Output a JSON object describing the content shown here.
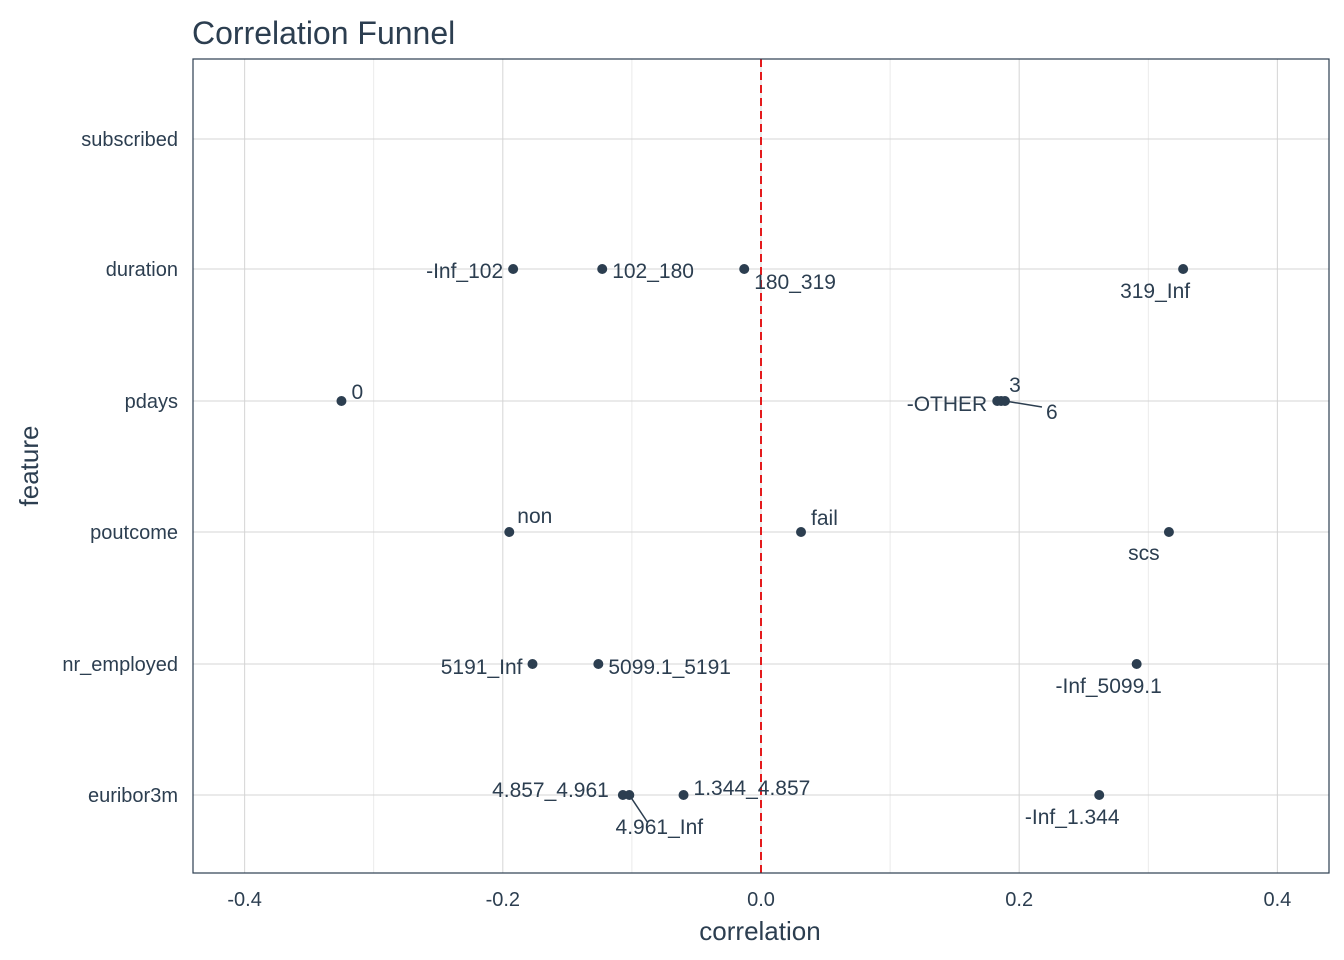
{
  "chart_data": {
    "type": "scatter",
    "title": "Correlation Funnel",
    "xlabel": "correlation",
    "ylabel": "feature",
    "xlim": [
      -0.44,
      0.44
    ],
    "x_ticks": [
      "-0.4",
      "-0.2",
      "0.0",
      "0.2",
      "0.4"
    ],
    "x_tick_values": [
      -0.4,
      -0.2,
      0.0,
      0.2,
      0.4
    ],
    "features": [
      "subscribed",
      "duration",
      "pdays",
      "poutcome",
      "nr_employed",
      "euribor3m"
    ],
    "reference_line": {
      "x": 0,
      "style": "dashed",
      "color": "#e41a1c"
    },
    "grid": true,
    "point_color": "#2c3e50",
    "points": [
      {
        "feature": "duration",
        "label": "-Inf_102",
        "x": -0.192
      },
      {
        "feature": "duration",
        "label": "102_180",
        "x": -0.123
      },
      {
        "feature": "duration",
        "label": "180_319",
        "x": -0.013
      },
      {
        "feature": "duration",
        "label": "319_Inf",
        "x": 0.327
      },
      {
        "feature": "pdays",
        "label": "0",
        "x": -0.325
      },
      {
        "feature": "pdays",
        "label": "-OTHER",
        "x": 0.183
      },
      {
        "feature": "pdays",
        "label": "3",
        "x": 0.186
      },
      {
        "feature": "pdays",
        "label": "6",
        "x": 0.189
      },
      {
        "feature": "poutcome",
        "label": "non",
        "x": -0.195
      },
      {
        "feature": "poutcome",
        "label": "fail",
        "x": 0.031
      },
      {
        "feature": "poutcome",
        "label": "scs",
        "x": 0.316
      },
      {
        "feature": "nr_employed",
        "label": "5191_Inf",
        "x": -0.177
      },
      {
        "feature": "nr_employed",
        "label": "5099.1_5191",
        "x": -0.126
      },
      {
        "feature": "nr_employed",
        "label": "-Inf_5099.1",
        "x": 0.291
      },
      {
        "feature": "euribor3m",
        "label": "4.857_4.961",
        "x": -0.107
      },
      {
        "feature": "euribor3m",
        "label": "4.961_Inf",
        "x": -0.102
      },
      {
        "feature": "euribor3m",
        "label": "1.344_4.857",
        "x": -0.06
      },
      {
        "feature": "euribor3m",
        "label": "-Inf_1.344",
        "x": 0.262
      }
    ]
  }
}
